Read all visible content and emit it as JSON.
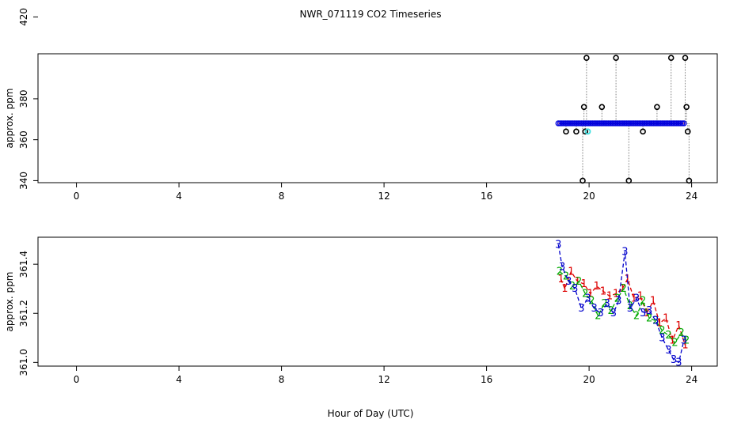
{
  "title": "NWR_071119  CO2 Timeseries",
  "xlabel": "Hour of Day (UTC)",
  "chart_data": [
    {
      "type": "scatter",
      "ylabel": "approx. ppm",
      "xlim": [
        -1.5,
        25
      ],
      "ylim": [
        339,
        402
      ],
      "xticks": [
        0,
        4,
        8,
        12,
        16,
        20,
        24
      ],
      "xtick_labels": [
        "0",
        "4",
        "8",
        "12",
        "16",
        "20",
        "24"
      ],
      "yticks": [
        340,
        360,
        380,
        420
      ],
      "ytick_labels": [
        "340",
        "360",
        "380",
        "420"
      ],
      "series": [
        {
          "role": "flagged",
          "color": "#000000",
          "x": [
            19.1,
            19.5,
            19.75,
            19.8,
            19.85,
            19.9,
            20.5,
            21.05,
            21.55,
            22.1,
            22.65,
            23.2,
            23.75,
            23.8,
            23.85,
            23.9
          ],
          "y": [
            364,
            364,
            340,
            376,
            364,
            400,
            376,
            400,
            340,
            364,
            376,
            400,
            400,
            376,
            364,
            340
          ]
        },
        {
          "role": "cyan",
          "color": "#40e0e0",
          "x": [
            19.95
          ],
          "y": [
            364
          ]
        },
        {
          "role": "main",
          "color": "#0000dd",
          "x_start": 18.8,
          "x_end": 23.75,
          "x_step": 0.07,
          "y": 368
        }
      ]
    },
    {
      "type": "line",
      "ylabel": "approx. ppm",
      "xlim": [
        -1.5,
        25
      ],
      "ylim": [
        360.985,
        361.51
      ],
      "xticks": [
        0,
        4,
        8,
        12,
        16,
        20,
        24
      ],
      "xtick_labels": [
        "0",
        "4",
        "8",
        "12",
        "16",
        "20",
        "24"
      ],
      "yticks": [
        361.0,
        361.2,
        361.4
      ],
      "ytick_labels": [
        "361.0",
        "361.2",
        "361.4"
      ],
      "series": [
        {
          "name": "1",
          "label": "1",
          "color": "#dd0000",
          "x": [
            18.9,
            19.05,
            19.3,
            19.55,
            19.8,
            20.05,
            20.3,
            20.55,
            20.8,
            21.05,
            21.3,
            21.5,
            21.75,
            22.0,
            22.25,
            22.5,
            22.75,
            23.0,
            23.25,
            23.5,
            23.75
          ],
          "y": [
            361.34,
            361.3,
            361.37,
            361.33,
            361.32,
            361.28,
            361.31,
            361.29,
            361.27,
            361.28,
            361.3,
            361.34,
            361.26,
            361.27,
            361.2,
            361.25,
            361.16,
            361.18,
            361.09,
            361.15,
            361.07
          ]
        },
        {
          "name": "2",
          "label": "2",
          "color": "#00aa00",
          "x": [
            18.85,
            19.1,
            19.35,
            19.6,
            19.85,
            20.1,
            20.35,
            20.6,
            20.85,
            21.1,
            21.35,
            21.6,
            21.85,
            22.1,
            22.35,
            22.6,
            22.85,
            23.1,
            23.35,
            23.6,
            23.8
          ],
          "y": [
            361.37,
            361.35,
            361.31,
            361.33,
            361.28,
            361.25,
            361.19,
            361.24,
            361.21,
            361.26,
            361.3,
            361.23,
            361.19,
            361.25,
            361.18,
            361.17,
            361.13,
            361.11,
            361.08,
            361.12,
            361.09
          ]
        },
        {
          "name": "3",
          "label": "3",
          "color": "#0000cc",
          "x": [
            18.8,
            18.95,
            19.2,
            19.45,
            19.7,
            19.95,
            20.2,
            20.45,
            20.7,
            20.95,
            21.15,
            21.4,
            21.6,
            21.85,
            22.1,
            22.35,
            22.6,
            22.85,
            23.1,
            23.3,
            23.5,
            23.7
          ],
          "y": [
            361.48,
            361.39,
            361.33,
            361.3,
            361.22,
            361.26,
            361.22,
            361.2,
            361.24,
            361.2,
            361.25,
            361.45,
            361.22,
            361.26,
            361.2,
            361.21,
            361.17,
            361.1,
            361.05,
            361.01,
            361.0,
            361.09
          ]
        }
      ]
    }
  ]
}
